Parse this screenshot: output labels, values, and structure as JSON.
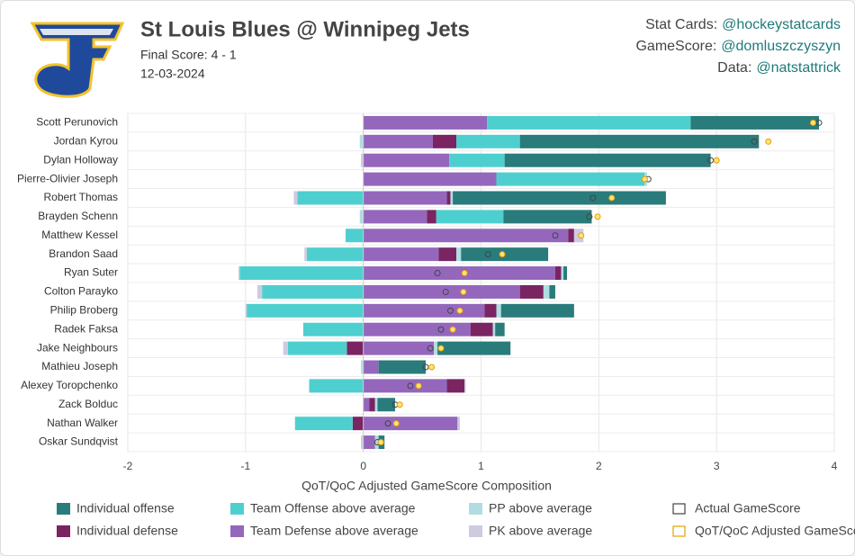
{
  "chart_data": {
    "type": "bar",
    "orientation": "horizontal",
    "title": "St Louis Blues @ Winnipeg Jets",
    "subtitle": [
      "Final Score: 4 - 1",
      "12-03-2024"
    ],
    "credits": [
      {
        "label": "Stat Cards:",
        "handle": "@hockeystatcards"
      },
      {
        "label": "GameScore:",
        "handle": "@domluszczyszyn"
      },
      {
        "label": "Data:",
        "handle": "@natstattrick"
      }
    ],
    "x_label": "QoT/QoC Adjusted GameScore Composition",
    "xlim": [
      -2,
      4
    ],
    "xticks": [
      -2,
      -1,
      0,
      1,
      2,
      3,
      4
    ],
    "grid": true,
    "categories": [
      "Scott Perunovich",
      "Jordan Kyrou",
      "Dylan Holloway",
      "Pierre-Olivier Joseph",
      "Robert Thomas",
      "Brayden Schenn",
      "Matthew Kessel",
      "Brandon Saad",
      "Ryan Suter",
      "Colton Parayko",
      "Philip Broberg",
      "Radek Faksa",
      "Jake Neighbours",
      "Mathieu Joseph",
      "Alexey Toropchenko",
      "Zack Bolduc",
      "Nathan Walker",
      "Oskar Sundqvist"
    ],
    "series": [
      {
        "name": "Team Defense above average",
        "color": "#9467bd",
        "values": [
          1.05,
          0.59,
          0.73,
          1.13,
          0.71,
          0.54,
          1.74,
          0.64,
          1.63,
          1.33,
          1.03,
          0.91,
          0.6,
          0.13,
          0.71,
          0.05,
          0.8,
          0.1
        ]
      },
      {
        "name": "Individual defense",
        "color": "#7a2462",
        "values": [
          0,
          0.2,
          0,
          0,
          0.03,
          0.08,
          0.05,
          0.15,
          0.05,
          0.2,
          0.1,
          0.19,
          -0.14,
          0,
          0.15,
          0.05,
          -0.09,
          0
        ]
      },
      {
        "name": "Team Offense above average",
        "color": "#4ecfcf",
        "values": [
          1.73,
          0.54,
          0.47,
          1.26,
          -0.56,
          0.57,
          -0.15,
          -0.48,
          -1.05,
          -0.86,
          -0.99,
          -0.51,
          -0.5,
          0,
          -0.46,
          0,
          -0.49,
          0
        ]
      },
      {
        "name": "PP above average",
        "color": "#b0dde2",
        "values": [
          0,
          -0.03,
          0,
          0.02,
          0.02,
          -0.03,
          0,
          0.04,
          0.02,
          0.05,
          0.04,
          0.02,
          0.03,
          -0.02,
          0,
          0.02,
          0,
          0.03
        ]
      },
      {
        "name": "PK above average",
        "color": "#cdcbe0",
        "values": [
          0,
          0,
          -0.02,
          0,
          -0.03,
          0,
          0.08,
          -0.02,
          -0.01,
          -0.04,
          -0.01,
          0,
          -0.04,
          0,
          0.01,
          0,
          0.02,
          -0.02
        ]
      },
      {
        "name": "Individual offense",
        "color": "#2a7b7b",
        "values": [
          1.09,
          2.03,
          1.75,
          0,
          1.81,
          0.75,
          0,
          0.74,
          0.03,
          0.05,
          0.62,
          0.08,
          0.62,
          0.4,
          0,
          0.15,
          0,
          0.05
        ]
      }
    ],
    "points": [
      {
        "name": "Actual GameScore",
        "color": "#444444",
        "fill": "none",
        "values": [
          3.87,
          3.32,
          2.95,
          2.42,
          1.95,
          1.92,
          1.63,
          1.06,
          0.63,
          0.7,
          0.74,
          0.66,
          0.57,
          0.53,
          0.4,
          0.27,
          0.21,
          0.12
        ]
      },
      {
        "name": "QoT/QoC Adjusted GameScore",
        "color": "#e6a100",
        "fill": "#ffe27a",
        "values": [
          3.82,
          3.44,
          3.0,
          2.39,
          2.11,
          1.99,
          1.85,
          1.18,
          0.86,
          0.85,
          0.82,
          0.76,
          0.66,
          0.58,
          0.47,
          0.31,
          0.28,
          0.15
        ]
      }
    ]
  }
}
